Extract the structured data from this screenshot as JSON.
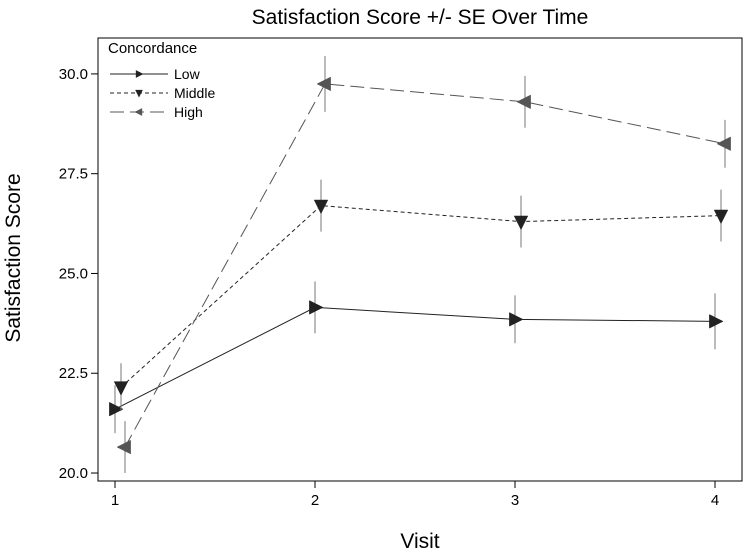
{
  "chart_data": {
    "type": "line",
    "title": "Satisfaction Score +/- SE Over Time",
    "xlabel": "Visit",
    "ylabel": "Satisfaction Score",
    "categories": [
      "1",
      "2",
      "3",
      "4"
    ],
    "x_ticks": [
      "1",
      "2",
      "3",
      "4"
    ],
    "y_ticks": [
      "20.0",
      "22.5",
      "25.0",
      "27.5",
      "30.0"
    ],
    "ylim": [
      19.8,
      30.9
    ],
    "legend_title": "Concordance",
    "legend_position": "top-left",
    "series": [
      {
        "name": "Low",
        "x": [
          1,
          2,
          3,
          4
        ],
        "values": [
          21.6,
          24.15,
          23.85,
          23.8
        ],
        "se": [
          0.6,
          0.65,
          0.6,
          0.7
        ],
        "marker": "triangle-right",
        "line_style": "solid",
        "color": "#222222"
      },
      {
        "name": "Middle",
        "x": [
          1,
          2,
          3,
          4
        ],
        "values": [
          22.15,
          26.7,
          26.3,
          26.45
        ],
        "se": [
          0.6,
          0.65,
          0.65,
          0.65
        ],
        "marker": "triangle-down",
        "line_style": "dashed",
        "color": "#222222"
      },
      {
        "name": "High",
        "x": [
          1,
          2,
          3,
          4
        ],
        "values": [
          20.65,
          29.75,
          29.3,
          28.25
        ],
        "se": [
          0.65,
          0.7,
          0.65,
          0.6
        ],
        "marker": "triangle-left",
        "line_style": "longdash",
        "color": "#555555"
      }
    ]
  }
}
